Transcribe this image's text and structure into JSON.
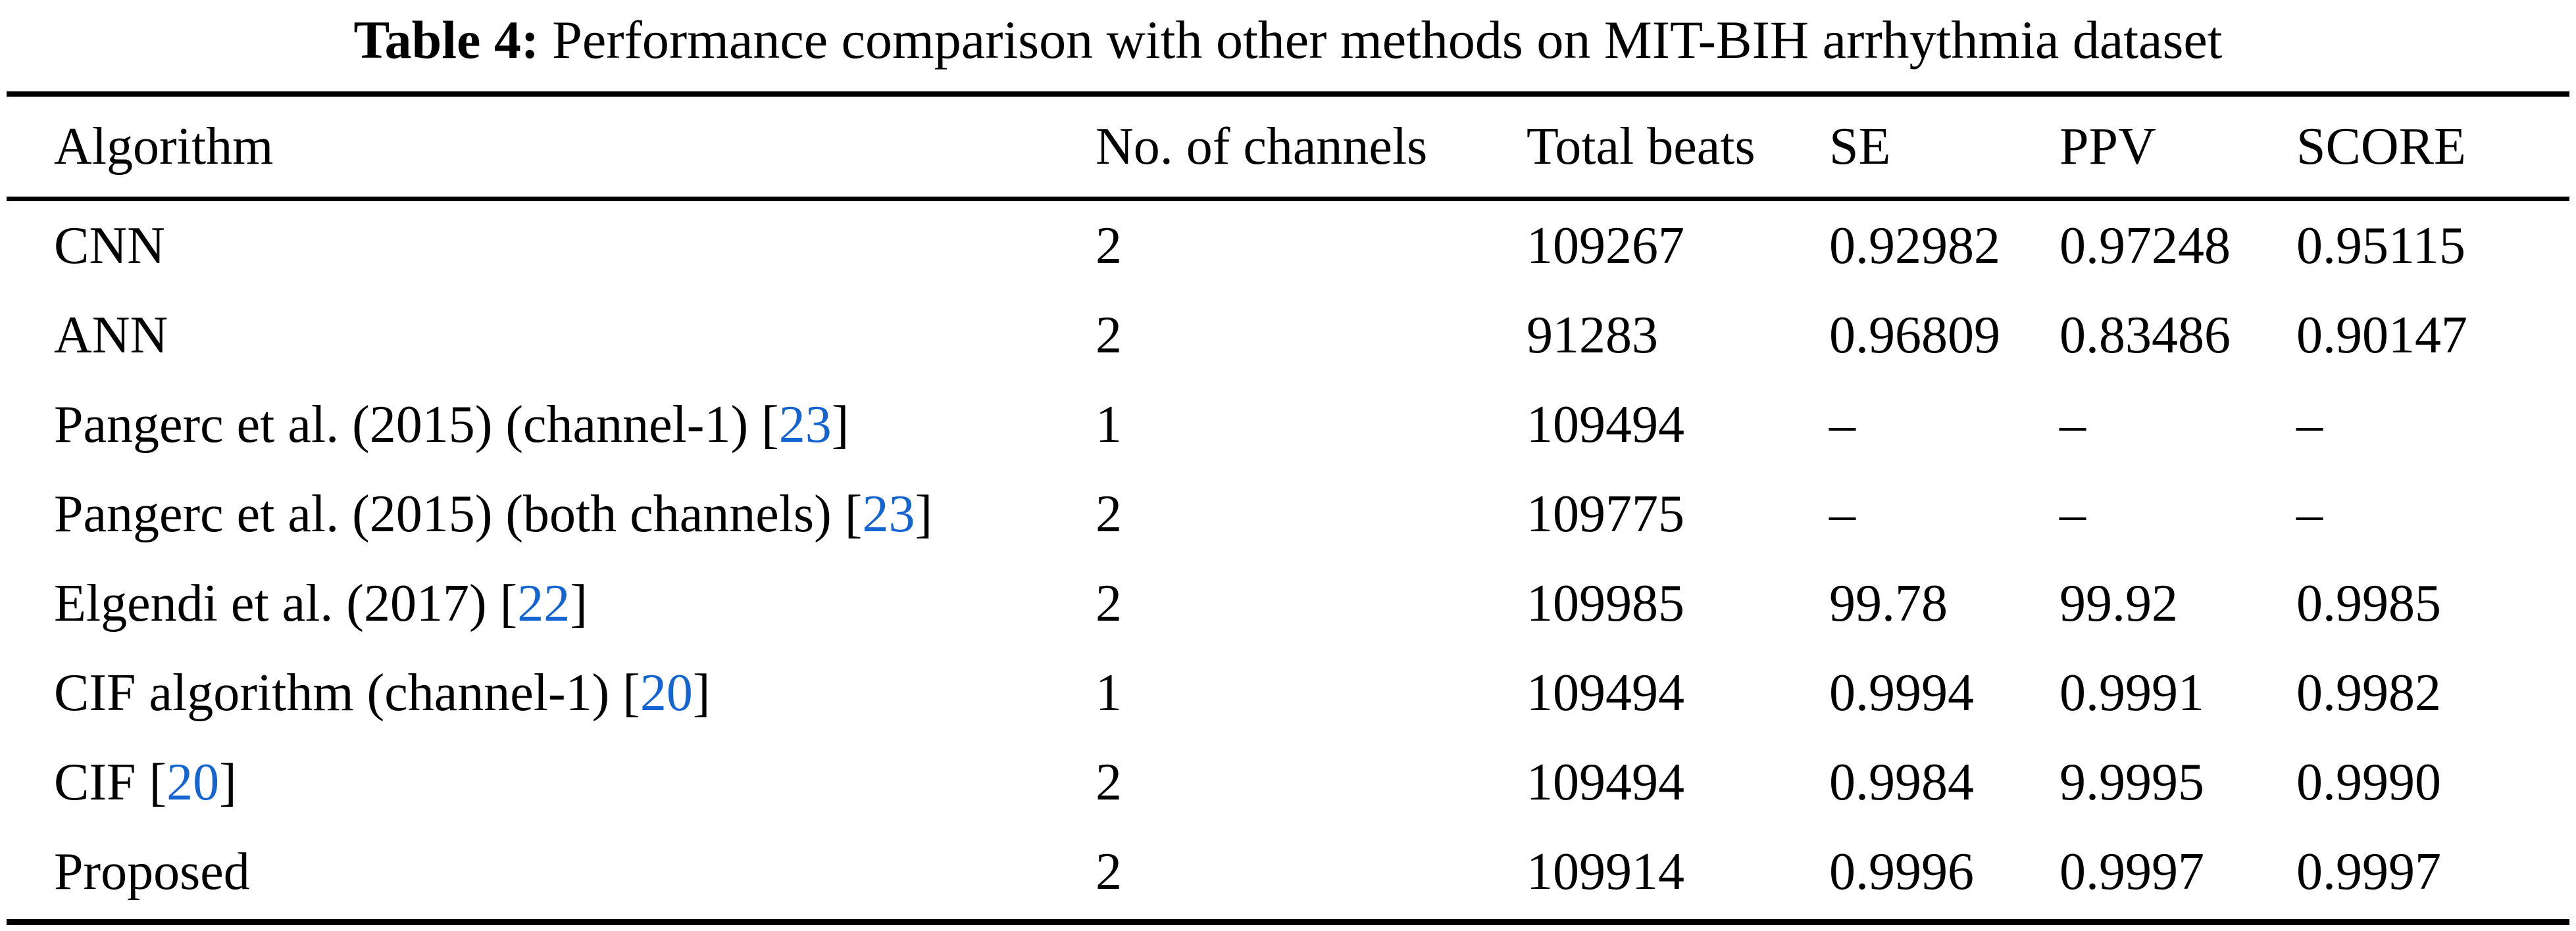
{
  "caption": {
    "label": "Table 4:",
    "text": "Performance comparison with other methods on MIT-BIH arrhythmia dataset"
  },
  "colors": {
    "citation_blue": "#1464D2",
    "text_black": "#000000",
    "background": "#ffffff"
  },
  "table": {
    "columns": [
      "Algorithm",
      "No. of channels",
      "Total beats",
      "SE",
      "PPV",
      "SCORE"
    ],
    "rows": [
      {
        "algorithm": "CNN",
        "cite_open": "",
        "cite": "",
        "cite_close": "",
        "channels": "2",
        "total_beats": "109267",
        "se": "0.92982",
        "ppv": "0.97248",
        "score": "0.95115"
      },
      {
        "algorithm": "ANN",
        "cite_open": "",
        "cite": "",
        "cite_close": "",
        "channels": "2",
        "total_beats": "91283",
        "se": "0.96809",
        "ppv": "0.83486",
        "score": "0.90147"
      },
      {
        "algorithm": "Pangerc et al. (2015) (channel-1)",
        "cite_open": " [",
        "cite": "23",
        "cite_close": "]",
        "channels": "1",
        "total_beats": "109494",
        "se": "–",
        "ppv": "–",
        "score": "–"
      },
      {
        "algorithm": "Pangerc et al. (2015) (both channels)",
        "cite_open": " [",
        "cite": "23",
        "cite_close": "]",
        "channels": "2",
        "total_beats": "109775",
        "se": "–",
        "ppv": "–",
        "score": "–"
      },
      {
        "algorithm": "Elgendi et al. (2017)",
        "cite_open": " [",
        "cite": "22",
        "cite_close": "]",
        "channels": "2",
        "total_beats": "109985",
        "se": "99.78",
        "ppv": "99.92",
        "score": "0.9985"
      },
      {
        "algorithm": "CIF algorithm (channel-1)",
        "cite_open": " [",
        "cite": "20",
        "cite_close": "]",
        "channels": "1",
        "total_beats": "109494",
        "se": "0.9994",
        "ppv": "0.9991",
        "score": "0.9982"
      },
      {
        "algorithm": "CIF",
        "cite_open": " [",
        "cite": "20",
        "cite_close": "]",
        "channels": "2",
        "total_beats": "109494",
        "se": "0.9984",
        "ppv": "9.9995",
        "score": "0.9990"
      },
      {
        "algorithm": "Proposed",
        "cite_open": "",
        "cite": "",
        "cite_close": "",
        "channels": "2",
        "total_beats": "109914",
        "se": "0.9996",
        "ppv": "0.9997",
        "score": "0.9997"
      }
    ]
  }
}
